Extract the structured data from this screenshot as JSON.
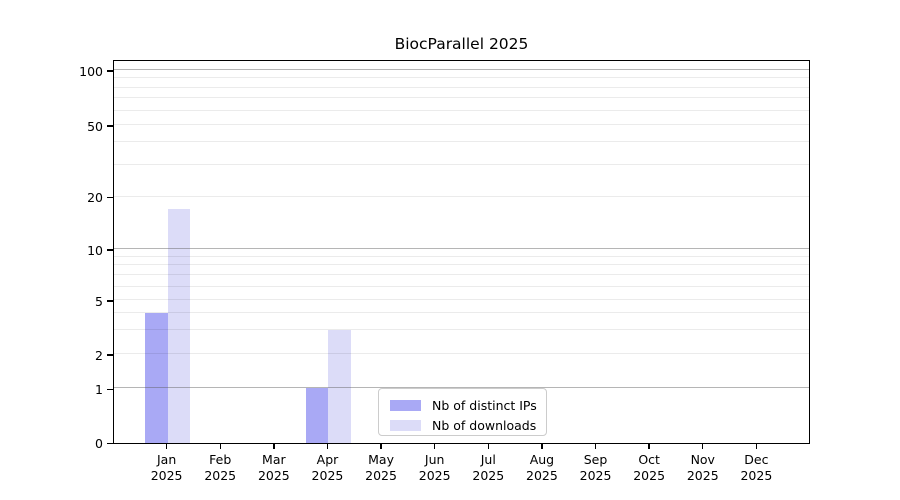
{
  "title": "BiocParallel 2025",
  "chart_data": {
    "type": "bar",
    "title": "BiocParallel 2025",
    "categories": [
      "Jan 2025",
      "Feb 2025",
      "Mar 2025",
      "Apr 2025",
      "May 2025",
      "Jun 2025",
      "Jul 2025",
      "Aug 2025",
      "Sep 2025",
      "Oct 2025",
      "Nov 2025",
      "Dec 2025"
    ],
    "series": [
      {
        "name": "Nb of distinct IPs",
        "color": "#a9a9f5",
        "values": [
          4,
          0,
          0,
          1,
          0,
          0,
          0,
          0,
          0,
          0,
          0,
          0
        ]
      },
      {
        "name": "Nb of downloads",
        "color": "#dcdcf8",
        "values": [
          17,
          0,
          0,
          3,
          0,
          0,
          0,
          0,
          0,
          0,
          0,
          0
        ]
      }
    ],
    "xlabel": "",
    "ylabel": "",
    "yscale": "log-like (0, then logarithmic)",
    "ytick_values": [
      0,
      1,
      2,
      5,
      10,
      20,
      50,
      100
    ],
    "ytick_labels": [
      "0",
      "1",
      "2",
      "5",
      "10",
      "20",
      "50",
      "100"
    ],
    "major_grid_values": [
      1,
      10,
      100
    ],
    "minor_grid_values": [
      2,
      3,
      4,
      5,
      6,
      7,
      8,
      9,
      20,
      30,
      40,
      50,
      60,
      70,
      80,
      90
    ],
    "ylim": [
      0,
      120
    ],
    "grid": true,
    "grid_over_bars": true,
    "legend_position": "inside lower center",
    "legend": [
      "Nb of distinct IPs",
      "Nb of downloads"
    ]
  },
  "colors": {
    "distinct_ips_bar": "#a9a9f5",
    "downloads_bar": "#dcdcf8",
    "major_grid": "#b3b3b3",
    "minor_grid": "#ebebeb",
    "axis": "#000000",
    "legend_border": "#cccccc"
  }
}
